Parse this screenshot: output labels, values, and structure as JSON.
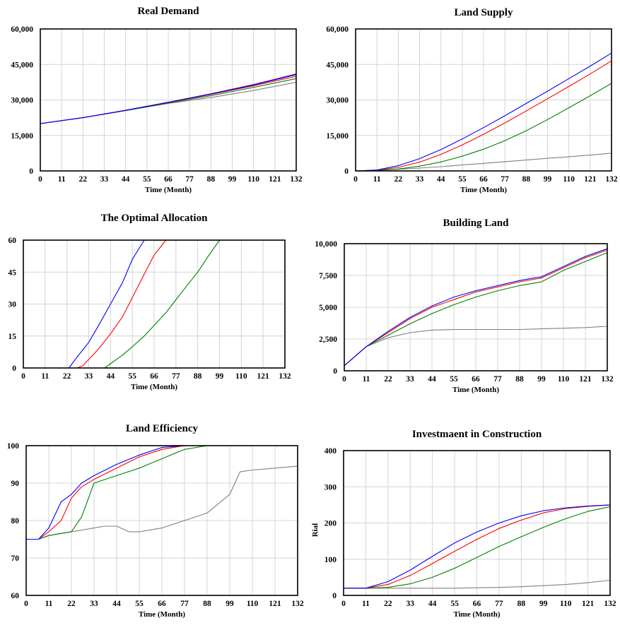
{
  "chart_data": [
    {
      "id": "real-demand",
      "type": "line",
      "title": "Real Demand",
      "xlabel": "Time (Month)",
      "ylabel": "",
      "xlim": [
        0,
        132
      ],
      "ylim": [
        0,
        60000
      ],
      "xticks": [
        0,
        11,
        22,
        33,
        44,
        55,
        66,
        77,
        88,
        99,
        110,
        121,
        132
      ],
      "xtick_labels": [
        "0",
        "11",
        "22",
        "33",
        "44",
        "55",
        "66",
        "77",
        "88",
        "99",
        "110",
        "121",
        "132"
      ],
      "yticks": [
        0,
        15000,
        30000,
        45000,
        60000
      ],
      "ytick_labels": [
        "0",
        "15,000",
        "30,000",
        "45,000",
        "60,000"
      ],
      "grid": true,
      "series": [
        {
          "color": "#808080",
          "x": [
            0,
            22,
            44,
            66,
            88,
            110,
            132
          ],
          "y": [
            20000,
            22500,
            25500,
            28500,
            31000,
            34000,
            37500
          ]
        },
        {
          "color": "#008000",
          "x": [
            0,
            22,
            44,
            66,
            88,
            110,
            132
          ],
          "y": [
            20000,
            22500,
            25500,
            28700,
            31800,
            35300,
            39000
          ]
        },
        {
          "color": "#ff0000",
          "x": [
            0,
            22,
            44,
            66,
            88,
            110,
            132
          ],
          "y": [
            20000,
            22500,
            25600,
            28900,
            32300,
            36000,
            40000
          ]
        },
        {
          "color": "#800080",
          "x": [
            0,
            22,
            44,
            66,
            88,
            110,
            132
          ],
          "y": [
            20000,
            22500,
            25600,
            29000,
            32600,
            36500,
            41000
          ]
        },
        {
          "color": "#0000ff",
          "x": [
            0,
            22,
            44,
            66,
            88,
            110,
            132
          ],
          "y": [
            20000,
            22500,
            25600,
            29000,
            32500,
            36300,
            40700
          ]
        }
      ]
    },
    {
      "id": "land-supply",
      "type": "line",
      "title": "Land Supply",
      "xlabel": "Time (Month)",
      "ylabel": "",
      "xlim": [
        0,
        132
      ],
      "ylim": [
        0,
        60000
      ],
      "xticks": [
        0,
        11,
        22,
        33,
        44,
        55,
        66,
        77,
        88,
        99,
        110,
        121,
        132
      ],
      "xtick_labels": [
        "0",
        "11",
        "22",
        "33",
        "44",
        "55",
        "66",
        "77",
        "88",
        "99",
        "110",
        "121",
        "132"
      ],
      "yticks": [
        0,
        15000,
        30000,
        45000,
        60000
      ],
      "ytick_labels": [
        "0",
        "15,000",
        "30,000",
        "45,000",
        "60,000"
      ],
      "grid": true,
      "series": [
        {
          "color": "#808080",
          "x": [
            0,
            11,
            22,
            33,
            44,
            55,
            66,
            77,
            88,
            99,
            110,
            121,
            132
          ],
          "y": [
            0,
            300,
            700,
            1200,
            1800,
            2500,
            3200,
            3900,
            4600,
            5300,
            6000,
            6700,
            7500
          ]
        },
        {
          "color": "#008000",
          "x": [
            0,
            11,
            22,
            33,
            44,
            55,
            66,
            77,
            88,
            99,
            110,
            121,
            132
          ],
          "y": [
            0,
            200,
            800,
            2000,
            3800,
            6200,
            9200,
            12800,
            17000,
            21700,
            26700,
            31800,
            37000
          ]
        },
        {
          "color": "#ff0000",
          "x": [
            0,
            11,
            22,
            33,
            44,
            55,
            66,
            77,
            88,
            99,
            110,
            121,
            132
          ],
          "y": [
            0,
            300,
            1500,
            3700,
            7000,
            11000,
            15500,
            20300,
            25300,
            30500,
            35700,
            41000,
            46500
          ]
        },
        {
          "color": "#0000ff",
          "x": [
            0,
            11,
            22,
            33,
            44,
            55,
            66,
            77,
            88,
            99,
            110,
            121,
            132
          ],
          "y": [
            0,
            400,
            2200,
            5200,
            9000,
            13500,
            18300,
            23300,
            28500,
            33700,
            39000,
            44300,
            49800
          ]
        }
      ]
    },
    {
      "id": "optimal-allocation",
      "type": "line",
      "title": "The Optimal Allocation",
      "xlabel": "Time (Month)",
      "ylabel": "",
      "xlim": [
        0,
        132
      ],
      "ylim": [
        0,
        60
      ],
      "xticks": [
        0,
        11,
        22,
        33,
        44,
        55,
        66,
        77,
        88,
        99,
        110,
        121,
        132
      ],
      "xtick_labels": [
        "0",
        "11",
        "22",
        "33",
        "44",
        "55",
        "66",
        "77",
        "88",
        "99",
        "110",
        "121",
        "132"
      ],
      "yticks": [
        0,
        15,
        30,
        45,
        60
      ],
      "ytick_labels": [
        "0",
        "15",
        "30",
        "45",
        "60"
      ],
      "grid": true,
      "series": [
        {
          "color": "#008000",
          "x": [
            0,
            41,
            44,
            50,
            55,
            61,
            66,
            72,
            77,
            82,
            88,
            93,
            99,
            132
          ],
          "y": [
            0,
            0,
            2,
            6,
            10,
            15,
            20,
            26,
            32,
            38,
            45,
            52,
            60,
            60
          ]
        },
        {
          "color": "#ff0000",
          "x": [
            0,
            27,
            30,
            33,
            38,
            44,
            50,
            55,
            61,
            66,
            72,
            132
          ],
          "y": [
            0,
            0,
            1,
            4,
            9,
            16,
            24,
            33,
            44,
            53,
            60,
            60
          ]
        },
        {
          "color": "#0000ff",
          "x": [
            0,
            23,
            27,
            33,
            38,
            44,
            50,
            55,
            61,
            132
          ],
          "y": [
            0,
            0,
            5,
            12,
            20,
            30,
            40,
            51,
            60,
            60
          ]
        }
      ]
    },
    {
      "id": "building-land",
      "type": "line",
      "title": "Building Land",
      "xlabel": "Time (Month)",
      "ylabel": "",
      "xlim": [
        0,
        132
      ],
      "ylim": [
        0,
        10000
      ],
      "xticks": [
        0,
        11,
        22,
        33,
        44,
        55,
        66,
        77,
        88,
        99,
        110,
        121,
        132
      ],
      "xtick_labels": [
        "0",
        "11",
        "22",
        "33",
        "44",
        "55",
        "66",
        "77",
        "88",
        "99",
        "110",
        "121",
        "132"
      ],
      "yticks": [
        0,
        2500,
        5000,
        7500,
        10000
      ],
      "ytick_labels": [
        "0",
        "2,500",
        "5,000",
        "7,500",
        "10,000"
      ],
      "grid": true,
      "series": [
        {
          "color": "#808080",
          "x": [
            0,
            11,
            22,
            33,
            44,
            55,
            66,
            77,
            88,
            99,
            110,
            121,
            132
          ],
          "y": [
            400,
            1900,
            2600,
            3000,
            3200,
            3250,
            3250,
            3250,
            3250,
            3300,
            3350,
            3400,
            3500
          ]
        },
        {
          "color": "#008000",
          "x": [
            0,
            11,
            22,
            33,
            44,
            55,
            66,
            77,
            88,
            99,
            110,
            121,
            132
          ],
          "y": [
            400,
            1900,
            2800,
            3700,
            4500,
            5200,
            5800,
            6300,
            6700,
            7000,
            7900,
            8600,
            9300
          ]
        },
        {
          "color": "#ff0000",
          "x": [
            0,
            11,
            22,
            33,
            44,
            55,
            66,
            77,
            88,
            99,
            110,
            121,
            132
          ],
          "y": [
            400,
            1900,
            3000,
            4100,
            5000,
            5600,
            6200,
            6600,
            7000,
            7300,
            8100,
            8900,
            9500
          ]
        },
        {
          "color": "#0000ff",
          "x": [
            0,
            11,
            22,
            33,
            44,
            55,
            66,
            77,
            88,
            99,
            110,
            121,
            132
          ],
          "y": [
            400,
            1900,
            3100,
            4200,
            5100,
            5800,
            6300,
            6700,
            7100,
            7400,
            8200,
            9000,
            9600
          ]
        }
      ]
    },
    {
      "id": "land-efficiency",
      "type": "line",
      "title": "Land Efficiency",
      "xlabel": "Time (Month)",
      "ylabel": "",
      "xlim": [
        0,
        132
      ],
      "ylim": [
        60,
        100
      ],
      "xticks": [
        0,
        11,
        22,
        33,
        44,
        55,
        66,
        77,
        88,
        99,
        110,
        121,
        132
      ],
      "xtick_labels": [
        "0",
        "11",
        "22",
        "33",
        "44",
        "55",
        "66",
        "77",
        "88",
        "99",
        "110",
        "121",
        "132"
      ],
      "yticks": [
        60,
        70,
        80,
        90,
        100
      ],
      "ytick_labels": [
        "60",
        "70",
        "80",
        "90",
        "100"
      ],
      "grid": true,
      "series": [
        {
          "color": "#808080",
          "x": [
            0,
            6,
            11,
            22,
            33,
            38,
            44,
            50,
            55,
            66,
            77,
            88,
            99,
            104,
            110,
            121,
            132
          ],
          "y": [
            75,
            75,
            76,
            77,
            78,
            78.5,
            78.5,
            77,
            77,
            78,
            80,
            82,
            87,
            93,
            93.5,
            94,
            94.5
          ]
        },
        {
          "color": "#008000",
          "x": [
            0,
            6,
            11,
            22,
            27,
            33,
            44,
            55,
            66,
            77,
            88,
            132
          ],
          "y": [
            75,
            75,
            76,
            77,
            81,
            90,
            92,
            94,
            96.5,
            99,
            100,
            100
          ]
        },
        {
          "color": "#ff0000",
          "x": [
            0,
            6,
            11,
            17,
            22,
            27,
            33,
            44,
            55,
            66,
            77,
            132
          ],
          "y": [
            75,
            75,
            77,
            80,
            86,
            89,
            91,
            94,
            97,
            99,
            100,
            100
          ]
        },
        {
          "color": "#0000ff",
          "x": [
            0,
            6,
            11,
            17,
            22,
            27,
            33,
            44,
            55,
            66,
            77,
            132
          ],
          "y": [
            75,
            75,
            78,
            85,
            87,
            90,
            92,
            95,
            97.5,
            99.5,
            100,
            100
          ]
        }
      ]
    },
    {
      "id": "investment-construction",
      "type": "line",
      "title": "Investmaent in Construction",
      "xlabel": "Time (Month)",
      "ylabel": "Rial",
      "xlim": [
        0,
        132
      ],
      "ylim": [
        0,
        400
      ],
      "xticks": [
        0,
        11,
        22,
        33,
        44,
        55,
        66,
        77,
        88,
        99,
        110,
        121,
        132
      ],
      "xtick_labels": [
        "0",
        "11",
        "22",
        "33",
        "44",
        "55",
        "66",
        "77",
        "88",
        "99",
        "110",
        "121",
        "132"
      ],
      "yticks": [
        0,
        100,
        200,
        300,
        400
      ],
      "ytick_labels": [
        "0",
        "100",
        "200",
        "300",
        "400"
      ],
      "grid": true,
      "series": [
        {
          "color": "#808080",
          "x": [
            0,
            11,
            22,
            33,
            44,
            55,
            66,
            77,
            88,
            99,
            110,
            121,
            132
          ],
          "y": [
            20,
            20,
            20,
            20,
            20,
            20,
            21,
            22,
            24,
            27,
            30,
            35,
            42
          ]
        },
        {
          "color": "#008000",
          "x": [
            0,
            11,
            22,
            33,
            44,
            55,
            66,
            77,
            88,
            99,
            110,
            121,
            132
          ],
          "y": [
            20,
            20,
            22,
            32,
            50,
            75,
            105,
            135,
            162,
            188,
            212,
            232,
            245
          ]
        },
        {
          "color": "#ff0000",
          "x": [
            0,
            11,
            22,
            33,
            44,
            55,
            66,
            77,
            88,
            99,
            110,
            121,
            132
          ],
          "y": [
            20,
            20,
            30,
            55,
            88,
            122,
            155,
            185,
            208,
            228,
            240,
            246,
            250
          ]
        },
        {
          "color": "#0000ff",
          "x": [
            0,
            11,
            22,
            33,
            44,
            55,
            66,
            77,
            88,
            99,
            110,
            121,
            132
          ],
          "y": [
            20,
            20,
            38,
            70,
            108,
            145,
            175,
            200,
            220,
            234,
            242,
            247,
            250
          ]
        }
      ]
    }
  ]
}
